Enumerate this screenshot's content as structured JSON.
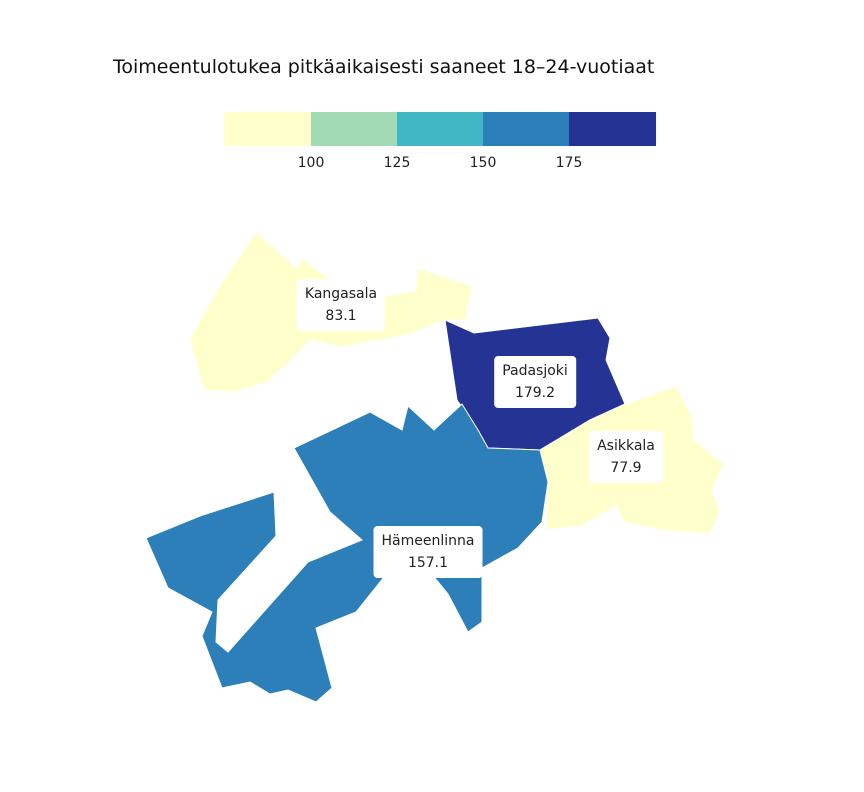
{
  "title": "Toimeentulotukea pitkäaikaisesti saaneet 18–24-vuotiaat",
  "legend": {
    "colors": [
      "#ffffcc",
      "#a1dab4",
      "#41b6c4",
      "#2c7fb8",
      "#253494"
    ],
    "ticks": [
      "100",
      "125",
      "150",
      "175"
    ]
  },
  "regions": [
    {
      "name": "Kangasala",
      "value": "83.1",
      "color": "#ffffcc"
    },
    {
      "name": "Padasjoki",
      "value": "179.2",
      "color": "#253494"
    },
    {
      "name": "Asikkala",
      "value": "77.9",
      "color": "#ffffcc"
    },
    {
      "name": "Hämeenlinna",
      "value": "157.1",
      "color": "#2c7fb8"
    }
  ]
}
